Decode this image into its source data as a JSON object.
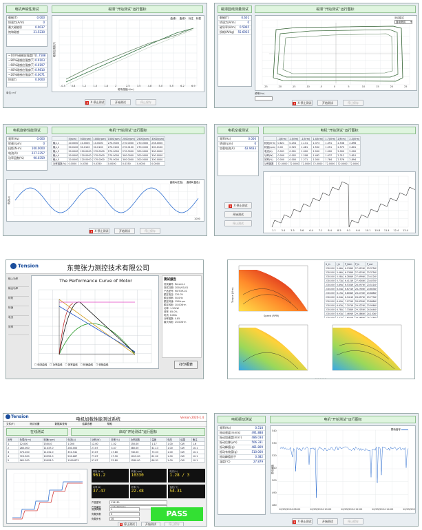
{
  "colors": {
    "header_green": "#dff5df",
    "stop_red": "#d9261c",
    "trace_blue": "#2f6fd0",
    "trace_red": "#d23a3a",
    "trace_green": "#3a6b3a"
  },
  "common": {
    "stop_btn": "Ⅹ 停止测试",
    "start_btn": "开始测试",
    "start_btn2": "开始测试",
    "pause_btn": "停止保存"
  },
  "s1": {
    "title": "电机声磁性测试",
    "plot_title": "磁滞“开始测试”运行图标",
    "params": [
      [
        "剩磁(T)",
        "0.000"
      ],
      [
        "矫顽力(A/m)",
        "0"
      ],
      [
        "最大磁能积",
        "0.0037"
      ],
      [
        "饱和磁感",
        "21.5230"
      ]
    ],
    "params2": [
      [
        "~100%磁感应强度(T)",
        "1.7588"
      ],
      [
        "~80%磁感应强度(T)",
        "0.9103"
      ],
      [
        "~60%磁感应强度(T)",
        "0.0197"
      ],
      [
        "~40%磁感应强度(T)",
        "0.9810"
      ],
      [
        "~20%磁感应强度(T)",
        "0.0071"
      ],
      [
        "矫顽力",
        "0.0000"
      ]
    ],
    "legend": [
      "曲线1",
      "曲线2",
      "标注",
      "标签"
    ],
    "xticks": [
      "-0.5",
      "0.8",
      "1.2",
      "1.5",
      "1.8",
      "2",
      "2.5",
      "3.5",
      "4.8",
      "5.0",
      "5.5",
      "6.2",
      "6.9"
    ],
    "ylabel": "磁感应强度(T)",
    "xlabel": "磁场强度(A/m)"
  },
  "s2": {
    "title": "磁滞回线测量测试",
    "plot_title": "磁滞“开始测试”运行图标",
    "params": [
      [
        "剩磁(T)",
        "0.601"
      ],
      [
        "矫顽力(A/m)",
        "0"
      ],
      [
        "磁导率(H/m)",
        "0.5965"
      ],
      [
        "损耗(W/kg)",
        "55.6935"
      ]
    ],
    "select_label": "测试模式",
    "select_value": "自动测试",
    "xticks": [
      "-25",
      "-20",
      "-15",
      "-10",
      "-5",
      "0",
      "5",
      "10",
      "15",
      "20",
      "25"
    ],
    "footer_label": "频率(Hz)"
  },
  "s3": {
    "title": "电机旋转性能测试",
    "plot_title": "电机“开始测试”运行图标",
    "params": [
      [
        "频率(Hz)",
        "0.000"
      ],
      [
        "转速(rpm)",
        "0"
      ],
      [
        "扭矩(N·m)",
        "100.0000"
      ],
      [
        "电流(A)",
        "227.3357"
      ],
      [
        "功率因数(%)",
        "90.0359"
      ]
    ],
    "table_head": [
      "",
      "5(rpm)",
      "500(rpm)",
      "1000(rpm)",
      "1500(rpm)",
      "2000(rpm)",
      "2500(rpm)",
      "3000(rpm)"
    ],
    "table_rows": [
      [
        "输入1",
        "20.0000",
        "10.0000",
        "10.0000",
        "270.0000",
        "270.0000",
        "270.0000",
        "258.0000"
      ],
      [
        "输入2",
        "50.0100",
        "50.0100",
        "50.0100",
        "270.0100",
        "270.0100",
        "270.0100",
        "300.0100"
      ],
      [
        "输入3",
        "50.0000",
        "120.0000",
        "270.0000",
        "270.0000",
        "270.0000",
        "300.0000",
        "300.0000"
      ],
      [
        "输入4",
        "50.0000",
        "120.0000",
        "270.0000",
        "270.0000",
        "300.0000",
        "300.0000",
        "300.0000"
      ],
      [
        "输入5",
        "20.0000",
        "120.0000",
        "270.0000",
        "270.0000",
        "300.0000",
        "300.0000",
        "300.0000"
      ],
      [
        "功率因数(%)",
        "0.0000",
        "0.0350",
        "0.0350",
        "0.0000",
        "0.0350",
        "0.0000",
        "0.0000"
      ]
    ],
    "legend": [
      "曲线A(红色)",
      "曲线B(蓝色)"
    ],
    "ylabel": "电流(A)",
    "xend": "1000"
  },
  "s4": {
    "title": "电机空载测试",
    "plot_title": "电机“开始测试”运行图标",
    "params": [
      [
        "频率(Hz)",
        "0.000"
      ],
      [
        "转速(rpm)",
        "0"
      ],
      [
        "空载电流(A)",
        "62.9433"
      ]
    ],
    "table_head": [
      "",
      "-1(N·m)",
      "-1(N·m)",
      "-1(N·m)",
      "1.4(N·m)",
      "1.7(N·m)",
      "2(N·m)",
      "2.3(N·m)"
    ],
    "table_rows": [
      [
        "转矩(N·m)",
        "0.621",
        "0.254",
        "1.131",
        "1.373",
        "1.391",
        "2.538",
        "2.898"
      ],
      [
        "转速(rpm)",
        "0.00",
        "0.925",
        "1.481",
        "1.502",
        "1.551",
        "2.573",
        "2.801"
      ],
      [
        "电流(A)",
        "0.001",
        "0.001",
        "1.000",
        "1.000",
        "1.000",
        "2.000",
        "2.000"
      ],
      [
        "功率(W)",
        "0.000",
        "0.002",
        "1.208",
        "1.462",
        "1.037",
        "2.312",
        "2.810"
      ],
      [
        "效率(%)",
        "0.000",
        "0.000",
        "1.271",
        "1.000",
        "1.784",
        "2.576",
        "2.894"
      ],
      [
        "功率因数",
        "72.0000",
        "72.0000",
        "72.0000",
        "72.0000",
        "72.0000",
        "72.0000",
        "72.0000"
      ]
    ],
    "buttons": [
      "开始测试",
      "开始测试",
      "停止测试"
    ],
    "xticks": [
      "1.1",
      "3.4",
      "3.5",
      "5.6",
      "6.4",
      "7.1",
      "8.4",
      "8.5",
      "9.1",
      "9.6",
      "10.1",
      "10.8",
      "11.4",
      "12.4",
      "13.4"
    ]
  },
  "s5": {
    "company": "东莞张力测控技术有限公司",
    "logo": "Tension",
    "curve_title": "The Performance Curve of Motor",
    "side_items": [
      "输入功率",
      "输出功率",
      "转矩",
      "转速",
      "电流",
      "效率"
    ],
    "info_title": "测试报告",
    "info_lines": [
      "测试编号: Record-1",
      "测试日期: 2020/01/01",
      "产品型号: MOTOR-01",
      "额定电压: 220.0V",
      "额定频率: 50.0Hz",
      "额定转速: 1500rpm",
      "额定转矩: 10.00N·m",
      "功率: 1.50kW",
      "效率: 85.0%",
      "电流: 6.80A",
      "功率因数: 0.85",
      "最大转矩: 25.00N·m"
    ],
    "print_btn": "打印报表",
    "bottom_items": [
      "电流曲线",
      "功率曲线",
      "效率曲线",
      "转速曲线",
      "转矩曲线"
    ]
  },
  "s6": {
    "table_head": [
      "U_in",
      "I_in",
      "P_tiem",
      "P_in",
      "P_out"
    ],
    "table_rows": [
      [
        "230.00V",
        "5.46A",
        "6.138W",
        "27.615W",
        "23.375W"
      ],
      [
        "230.00V",
        "5.46A",
        "6.138W",
        "27.615W",
        "23.375W"
      ],
      [
        "230.00V",
        "5.58A",
        "6.286W",
        "27.699W",
        "23.412W"
      ],
      [
        "230.00V",
        "5.73A",
        "6.412W",
        "27.916W",
        "23.457W"
      ],
      [
        "230.00V",
        "5.89A",
        "6.533W",
        "28.097W",
        "23.521W"
      ],
      [
        "230.00V",
        "6.04A",
        "6.672W",
        "28.290W",
        "23.603W"
      ],
      [
        "230.00V",
        "6.19A",
        "6.808W",
        "28.473W",
        "23.688W"
      ],
      [
        "230.00V",
        "6.34A",
        "6.941W",
        "28.657W",
        "23.779W"
      ],
      [
        "230.00V",
        "6.49A",
        "7.075W",
        "28.839W",
        "23.868W"
      ],
      [
        "230.00V",
        "6.63A",
        "7.207W",
        "29.022W",
        "23.956W"
      ],
      [
        "230.00V",
        "6.78A",
        "7.338W",
        "29.205W",
        "24.044W"
      ],
      [
        "230.00V",
        "6.93A",
        "7.469W",
        "29.386W",
        "24.130W"
      ],
      [
        "230.00V",
        "7.07A",
        "7.600W",
        "29.568W",
        "24.216W"
      ],
      [
        "230.00V",
        "7.22A",
        "7.729W",
        "29.749W",
        "24.301W"
      ],
      [
        "230.00V",
        "7.36A",
        "7.858W",
        "29.930W",
        "24.386W"
      ],
      [
        "230.00V",
        "7.51A",
        "7.986W",
        "30.110W",
        "24.470W"
      ],
      [
        "230.00V",
        "7.65A",
        "8.113W",
        "30.290W",
        "24.553W"
      ],
      [
        "230.00V",
        "7.79A",
        "8.239W",
        "30.469W",
        "24.636W"
      ],
      [
        "230.00V",
        "7.94A",
        "8.365W",
        "30.648W",
        "24.718W"
      ],
      [
        "230.00V",
        "8.08A",
        "8.490W",
        "30.827W",
        "24.800W"
      ],
      [
        "230.00V",
        "8.22A",
        "8.615W",
        "31.005W",
        "24.881W"
      ]
    ],
    "axis_x": "Speed (RPM)",
    "axis_y": "Torque (N·m)"
  },
  "s7": {
    "logo": "Tension",
    "window_title": "电机加载性能测试系统",
    "version": "Version 2020-1.4",
    "menu": [
      "文件(F)",
      "测试设置",
      "数据库查询",
      "结果查看",
      "帮助"
    ],
    "left_title": "在线测试",
    "right_title": "启动“开始测试”运行图标",
    "table_head": [
      "序号",
      "负载(N·m)",
      "转速(rpm)",
      "电流(A)",
      "功率(W)",
      "效率(%)",
      "功率因数",
      "温度",
      "电压",
      "结果",
      "备注"
    ],
    "table_rows": [
      [
        "1",
        "12.000",
        "1500.0",
        "1.000",
        "12.00",
        "1.02",
        "150.00",
        "1.17",
        "1.00",
        "CW",
        "1.6"
      ],
      [
        "2",
        "280.000",
        "11437.0",
        "280.000",
        "27.87",
        "3.47",
        "380.00",
        "41.13",
        "1.00",
        "CW",
        "10.1"
      ],
      [
        "3",
        "370.200",
        "11231.0",
        "351.541",
        "37.87",
        "17.80",
        "740.00",
        "73.53",
        "1.00",
        "CW",
        "10.1"
      ],
      [
        "4",
        "720.300",
        "10959.0",
        "500.667",
        "77.87",
        "17.90",
        "1019.00",
        "81.52",
        "1.00",
        "CW",
        "10.1"
      ],
      [
        "5",
        "961.200",
        "10993.0",
        "1099.873",
        "97.87",
        "22.80",
        "1280.00",
        "86.31",
        "1.00",
        "CW",
        "10.1"
      ]
    ],
    "readouts": [
      [
        "转矩(N·m)",
        "961.2"
      ],
      [
        "转速(rpm)",
        "10330"
      ],
      [
        "电流(A)",
        "1.28 / 3"
      ],
      [
        "功率(W)",
        "37.47"
      ],
      [
        "效率(%)",
        "22.48"
      ],
      [
        "温度(℃)",
        "54.31"
      ]
    ],
    "fields": [
      [
        "产品型号",
        "111111"
      ],
      [
        "产品编号",
        "1234567910"
      ]
    ],
    "inputs": [
      [
        "测试间隔",
        "1"
      ],
      [
        "负载步数",
        "5"
      ],
      [
        "负载步长",
        "10"
      ]
    ],
    "result": "PASS",
    "buttons": [
      "停止测试",
      "开始测试",
      "停止保存"
    ]
  },
  "s8": {
    "title": "电机振动测试",
    "plot_title": "电机“开始测试”运行图标",
    "params": [
      [
        "频率(Hz)",
        "0.518"
      ],
      [
        "振动速度(mm/s)",
        "491.888"
      ],
      [
        "振动加速度(m/s²)",
        "486.034"
      ],
      [
        "振动位移(μm)",
        "506.331"
      ],
      [
        "振动峰值(g)",
        "481.809"
      ],
      [
        "振动有效值(g)",
        "510.000"
      ],
      [
        "振动峰值因子",
        "0.382"
      ],
      [
        "温度(℃)",
        "27.879"
      ]
    ],
    "legend": "振动信号",
    "ylabel": "振动幅值",
    "xticks": [
      "10/25/2024 08:00",
      "10/25/2024 10:00",
      "10/25/2024 12:00",
      "10/25/2024 14:00",
      "10/25/2024 16:00"
    ],
    "yticks": [
      "480",
      "490",
      "500",
      "510",
      "520",
      "530",
      "540"
    ]
  }
}
